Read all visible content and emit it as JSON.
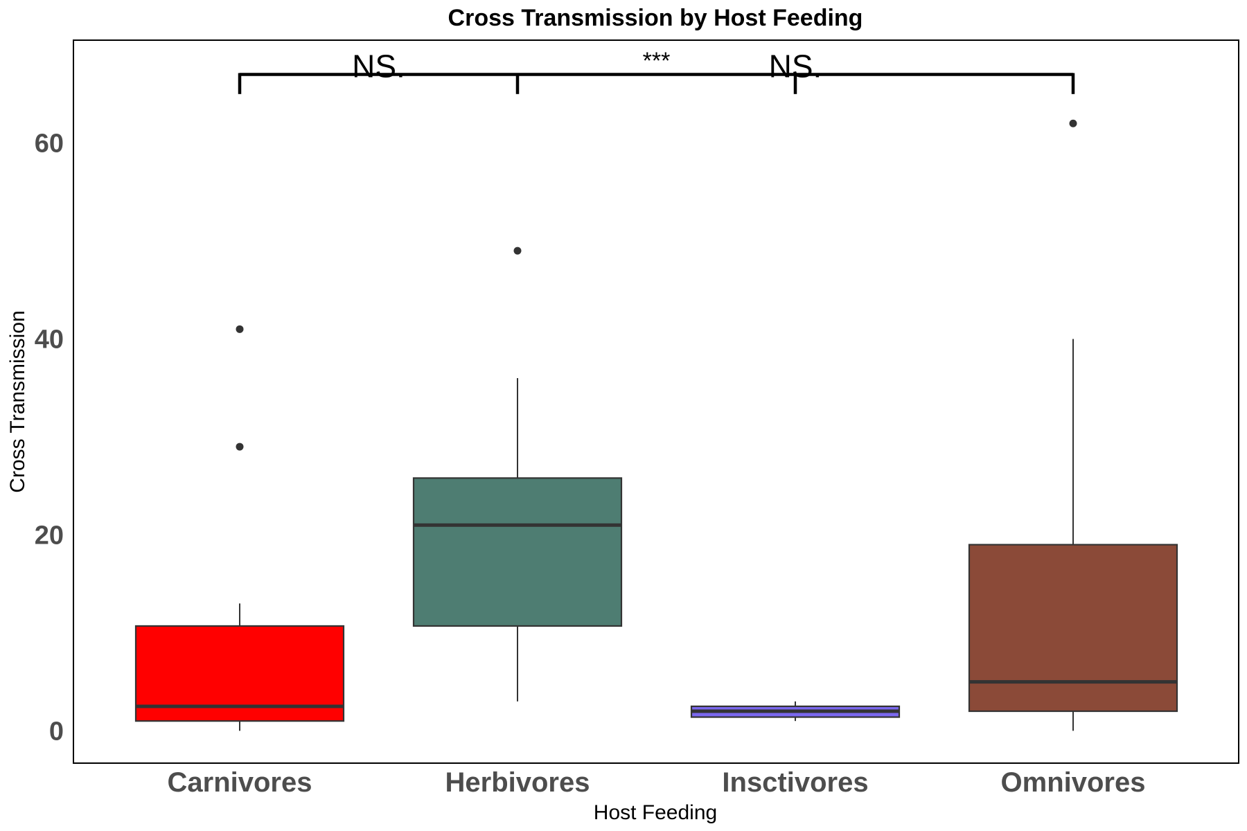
{
  "chart_data": {
    "type": "boxplot",
    "title": "Cross Transmission by Host Feeding",
    "xlabel": "Host Feeding",
    "ylabel": "Cross Transmission",
    "ylim": [
      -3.3,
      70.5
    ],
    "yticks": [
      0,
      20,
      40,
      60
    ],
    "grid": false,
    "categories": [
      "Carnivores",
      "Herbivores",
      "Insctivores",
      "Omnivores"
    ],
    "boxes": [
      {
        "category": "Carnivores",
        "whisker_low": 0,
        "q1": 1,
        "median": 2.5,
        "q3": 10.7,
        "whisker_high": 13,
        "outliers": [
          29,
          41
        ],
        "color": "#ff0000"
      },
      {
        "category": "Herbivores",
        "whisker_low": 3,
        "q1": 10.7,
        "median": 21,
        "q3": 25.8,
        "whisker_high": 36,
        "outliers": [
          49
        ],
        "color": "#4e7d72"
      },
      {
        "category": "Insctivores",
        "whisker_low": 1,
        "q1": 1.4,
        "median": 2,
        "q3": 2.5,
        "whisker_high": 3,
        "outliers": [],
        "color": "#7b68ee"
      },
      {
        "category": "Omnivores",
        "whisker_low": 0,
        "q1": 2,
        "median": 5,
        "q3": 19,
        "whisker_high": 40,
        "outliers": [
          62
        ],
        "color": "#8b4a38"
      }
    ],
    "significance": {
      "bracket_y": 67,
      "tick_bottom_y": 65,
      "label_y": 68,
      "stars_y": 69,
      "labels": [
        {
          "text": "NS.",
          "between": [
            "Carnivores",
            "Herbivores"
          ],
          "style": "label"
        },
        {
          "text": "***",
          "between": [
            "Herbivores",
            "Insctivores"
          ],
          "style": "stars"
        },
        {
          "text": "NS.",
          "between": [
            "Insctivores",
            "Insctivores"
          ],
          "style": "label"
        }
      ]
    }
  }
}
